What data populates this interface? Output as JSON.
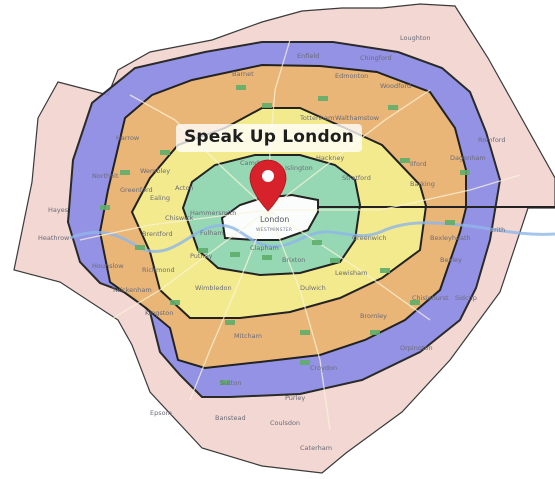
{
  "map": {
    "title": "Speak Up London",
    "center_label": "London",
    "center_sublabel": "WESTMINSTER",
    "marker_icon": "location-pin-icon",
    "marker_color": "#d7222b",
    "ring_colors": {
      "outer_region": "#f0d2cc",
      "zone_5": "#8c8ce6",
      "zone_4": "#eeb871",
      "zone_3": "#f3ed8e",
      "zone_2": "#8dd6b8",
      "zone_1": "#ffffff"
    },
    "places": [
      "Enfield",
      "Edmonton",
      "Harrow",
      "Northolt",
      "Wembley",
      "Greenford",
      "Hayes",
      "Heathrow",
      "Hounslow",
      "Brentford",
      "Richmond",
      "Twickenham",
      "Kingston",
      "Mitcham",
      "Croydon",
      "Sutton",
      "Epsom",
      "Ilford",
      "Romford",
      "Barking",
      "Dagenham",
      "Bexley",
      "Bexleyheath",
      "Orpington",
      "Bromley",
      "Woodford",
      "Chingford",
      "Loughton",
      "Walthamstow",
      "Tottenham",
      "Barnet",
      "Stratford",
      "Greenwich",
      "Lewisham",
      "Brixton",
      "Clapham",
      "Fulham",
      "Putney",
      "Wimbledon",
      "Dulwich",
      "Camden",
      "Islington",
      "Hackney",
      "Ealing",
      "Acton",
      "Chiswick",
      "Hammersmith",
      "Erith",
      "Sidcup",
      "Chislehurst",
      "Caterham",
      "Coulsdon",
      "Purley",
      "Banstead"
    ]
  }
}
